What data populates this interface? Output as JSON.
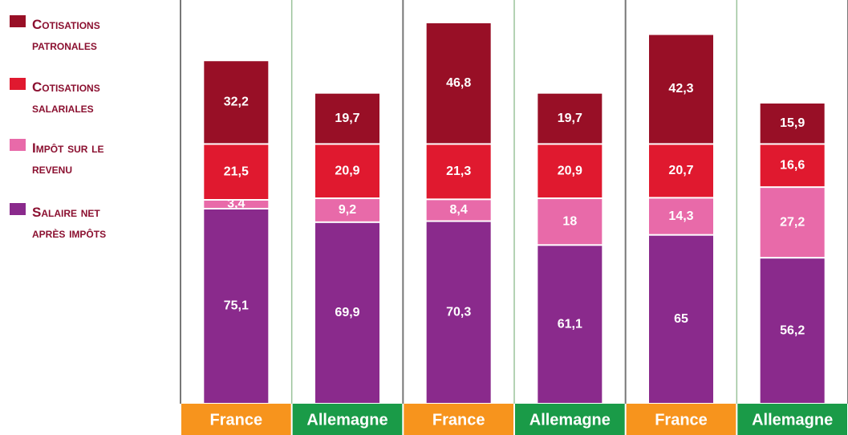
{
  "chart_data": {
    "type": "bar",
    "stacked": true,
    "categories": [
      "France",
      "Allemagne",
      "France",
      "Allemagne",
      "France",
      "Allemagne"
    ],
    "category_colors": [
      "#f7941d",
      "#1a9b48",
      "#f7941d",
      "#1a9b48",
      "#f7941d",
      "#1a9b48"
    ],
    "series": [
      {
        "name": "Salaire net après impôts",
        "color": "#8a2a8c",
        "values": [
          75.1,
          69.9,
          70.3,
          61.1,
          65,
          56.2
        ],
        "value_labels": [
          "75,1",
          "69,9",
          "70,3",
          "61,1",
          "65",
          "56,2"
        ]
      },
      {
        "name": "Impôt sur le revenu",
        "color": "#e86aa9",
        "values": [
          3.4,
          9.2,
          8.4,
          18,
          14.3,
          27.2
        ],
        "value_labels": [
          "3,4",
          "9,2",
          "8,4",
          "18",
          "14,3",
          "27,2"
        ]
      },
      {
        "name": "Cotisations salariales",
        "color": "#e0192f",
        "values": [
          21.5,
          20.9,
          21.3,
          20.9,
          20.7,
          16.6
        ],
        "value_labels": [
          "21,5",
          "20,9",
          "21,3",
          "20,9",
          "20,7",
          "16,6"
        ]
      },
      {
        "name": "Cotisations patronales",
        "color": "#980f26",
        "values": [
          32.2,
          19.7,
          46.8,
          19.7,
          42.3,
          15.9
        ],
        "value_labels": [
          "32,2",
          "19,7",
          "46,8",
          "19,7",
          "42,3",
          "15,9"
        ]
      }
    ]
  }
}
